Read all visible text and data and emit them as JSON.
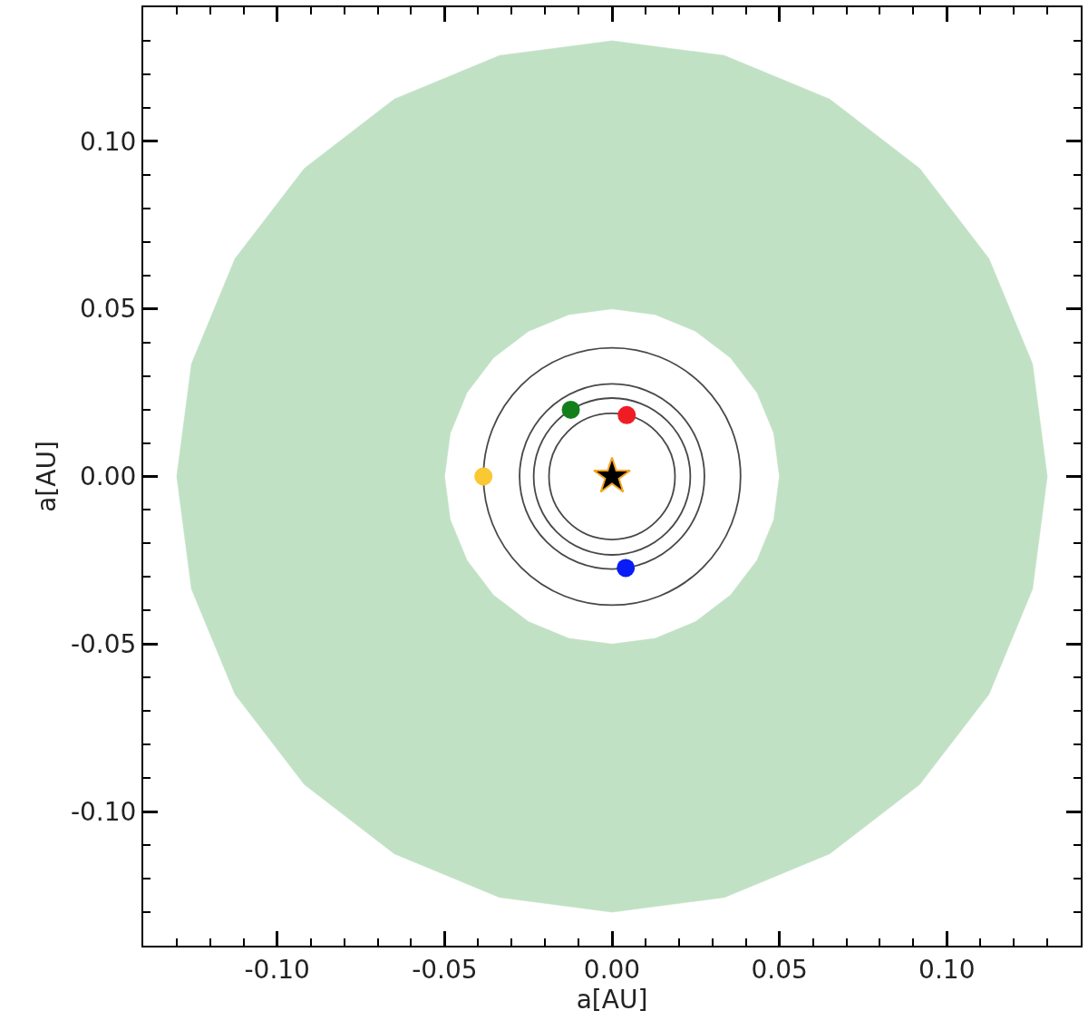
{
  "chart_data": {
    "type": "scatter",
    "xlabel": "a[AU]",
    "ylabel": "a[AU]",
    "xlim": [
      -0.14,
      0.14
    ],
    "ylim": [
      -0.14,
      0.14
    ],
    "xticks": [
      {
        "value": -0.13,
        "label": null
      },
      {
        "value": -0.12,
        "label": null
      },
      {
        "value": -0.11,
        "label": null
      },
      {
        "value": -0.1,
        "label": "-0.10"
      },
      {
        "value": -0.09,
        "label": null
      },
      {
        "value": -0.08,
        "label": null
      },
      {
        "value": -0.07,
        "label": null
      },
      {
        "value": -0.06,
        "label": null
      },
      {
        "value": -0.05,
        "label": "-0.05"
      },
      {
        "value": -0.04,
        "label": null
      },
      {
        "value": -0.03,
        "label": null
      },
      {
        "value": -0.02,
        "label": null
      },
      {
        "value": -0.01,
        "label": null
      },
      {
        "value": 0,
        "label": "0.00"
      },
      {
        "value": 0.01,
        "label": null
      },
      {
        "value": 0.02,
        "label": null
      },
      {
        "value": 0.03,
        "label": null
      },
      {
        "value": 0.04,
        "label": null
      },
      {
        "value": 0.05,
        "label": "0.05"
      },
      {
        "value": 0.06,
        "label": null
      },
      {
        "value": 0.07,
        "label": null
      },
      {
        "value": 0.08,
        "label": null
      },
      {
        "value": 0.09,
        "label": null
      },
      {
        "value": 0.1,
        "label": "0.10"
      },
      {
        "value": 0.11,
        "label": null
      },
      {
        "value": 0.12,
        "label": null
      },
      {
        "value": 0.13,
        "label": null
      }
    ],
    "yticks": [
      {
        "value": -0.13,
        "label": null
      },
      {
        "value": -0.12,
        "label": null
      },
      {
        "value": -0.11,
        "label": null
      },
      {
        "value": -0.1,
        "label": "-0.10"
      },
      {
        "value": -0.09,
        "label": null
      },
      {
        "value": -0.08,
        "label": null
      },
      {
        "value": -0.07,
        "label": null
      },
      {
        "value": -0.06,
        "label": null
      },
      {
        "value": -0.05,
        "label": "-0.05"
      },
      {
        "value": -0.04,
        "label": null
      },
      {
        "value": -0.03,
        "label": null
      },
      {
        "value": -0.02,
        "label": null
      },
      {
        "value": -0.01,
        "label": null
      },
      {
        "value": 0,
        "label": "0.00"
      },
      {
        "value": 0.01,
        "label": null
      },
      {
        "value": 0.02,
        "label": null
      },
      {
        "value": 0.03,
        "label": null
      },
      {
        "value": 0.04,
        "label": null
      },
      {
        "value": 0.05,
        "label": "0.05"
      },
      {
        "value": 0.06,
        "label": null
      },
      {
        "value": 0.07,
        "label": null
      },
      {
        "value": 0.08,
        "label": null
      },
      {
        "value": 0.09,
        "label": null
      },
      {
        "value": 0.1,
        "label": "0.10"
      },
      {
        "value": 0.11,
        "label": null
      },
      {
        "value": 0.12,
        "label": null
      },
      {
        "value": 0.13,
        "label": null
      }
    ],
    "series": [
      {
        "type": "area",
        "color": "#c1e1c5",
        "x": [
          0.13,
          0.1256,
          0.1126,
          0.0919,
          0.065,
          0.0336,
          0,
          -0.0336,
          -0.065,
          -0.0919,
          -0.1126,
          -0.1256,
          -0.13,
          -0.1256,
          -0.1126,
          -0.0919,
          -0.065,
          -0.0336,
          0,
          0.0336,
          0.065,
          0.0919,
          0.1126,
          0.1256,
          0.13,
          0.05,
          0.0483,
          0.0433,
          0.0354,
          0.025,
          0.0129,
          0,
          -0.0129,
          -0.025,
          -0.0354,
          -0.0433,
          -0.0483,
          -0.05,
          -0.0483,
          -0.0433,
          -0.0354,
          -0.025,
          -0.0129,
          0,
          0.0129,
          0.025,
          0.0354,
          0.0433,
          0.0483,
          0.05
        ],
        "values": [
          0,
          0.0336,
          0.065,
          0.0919,
          0.1126,
          0.1256,
          0.13,
          0.1256,
          0.1126,
          0.0919,
          0.065,
          0.0336,
          0,
          -0.0336,
          -0.065,
          -0.0919,
          -0.1126,
          -0.1256,
          -0.13,
          -0.1256,
          -0.1126,
          -0.0919,
          -0.065,
          -0.0336,
          0,
          0,
          -0.0129,
          -0.025,
          -0.0354,
          -0.0433,
          -0.0483,
          -0.05,
          -0.0483,
          -0.0433,
          -0.0354,
          -0.025,
          -0.0129,
          0,
          0.0129,
          0.025,
          0.0354,
          0.0433,
          0.0483,
          0.05,
          0.0483,
          0.0433,
          0.0354,
          0.025,
          0.0129,
          0
        ]
      },
      {
        "type": "scatter",
        "marker": "circle",
        "x": [
          -0.0384,
          -0.0123,
          0.0044,
          0.0041
        ],
        "values": [
          0,
          0.0199,
          0.0183,
          -0.0273
        ],
        "colors": [
          "#f9c832",
          "#137f1b",
          "#f01c24",
          "#0a1cf5"
        ]
      },
      {
        "type": "scatter",
        "marker": "star",
        "color": "#000000",
        "x": [
          0
        ],
        "values": [
          0
        ]
      }
    ]
  }
}
